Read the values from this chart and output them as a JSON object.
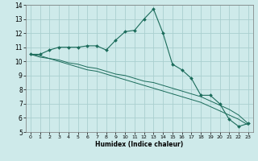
{
  "xlabel": "Humidex (Indice chaleur)",
  "ylabel": "",
  "background_color": "#ceeaea",
  "grid_color": "#aacfcf",
  "line_color": "#1a6b5a",
  "marker_color": "#1a6b5a",
  "xlim": [
    -0.5,
    23.5
  ],
  "ylim": [
    5,
    14
  ],
  "xticks": [
    0,
    1,
    2,
    3,
    4,
    5,
    6,
    7,
    8,
    9,
    10,
    11,
    12,
    13,
    14,
    15,
    16,
    17,
    18,
    19,
    20,
    21,
    22,
    23
  ],
  "yticks": [
    5,
    6,
    7,
    8,
    9,
    10,
    11,
    12,
    13,
    14
  ],
  "series": [
    {
      "x": [
        0,
        1,
        2,
        3,
        4,
        5,
        6,
        7,
        8,
        9,
        10,
        11,
        12,
        13,
        14,
        15,
        16,
        17,
        18,
        19,
        20,
        21,
        22,
        23
      ],
      "y": [
        10.5,
        10.5,
        10.8,
        11.0,
        11.0,
        11.0,
        11.1,
        11.1,
        10.8,
        11.5,
        12.1,
        12.2,
        13.0,
        13.7,
        12.0,
        9.8,
        9.4,
        8.8,
        7.6,
        7.6,
        7.0,
        5.9,
        5.4,
        5.6
      ],
      "has_markers": true
    },
    {
      "x": [
        0,
        1,
        2,
        3,
        4,
        5,
        6,
        7,
        8,
        9,
        10,
        11,
        12,
        13,
        14,
        15,
        16,
        17,
        18,
        19,
        20,
        21,
        22,
        23
      ],
      "y": [
        10.5,
        10.4,
        10.2,
        10.1,
        9.9,
        9.8,
        9.6,
        9.5,
        9.3,
        9.1,
        9.0,
        8.8,
        8.6,
        8.5,
        8.3,
        8.1,
        7.9,
        7.7,
        7.5,
        7.2,
        6.9,
        6.6,
        6.2,
        5.6
      ],
      "has_markers": false
    },
    {
      "x": [
        0,
        1,
        2,
        3,
        4,
        5,
        6,
        7,
        8,
        9,
        10,
        11,
        12,
        13,
        14,
        15,
        16,
        17,
        18,
        19,
        20,
        21,
        22,
        23
      ],
      "y": [
        10.5,
        10.3,
        10.2,
        10.0,
        9.8,
        9.6,
        9.4,
        9.3,
        9.1,
        8.9,
        8.7,
        8.5,
        8.3,
        8.1,
        7.9,
        7.7,
        7.5,
        7.3,
        7.1,
        6.8,
        6.5,
        6.2,
        5.9,
        5.5
      ],
      "has_markers": false
    }
  ]
}
